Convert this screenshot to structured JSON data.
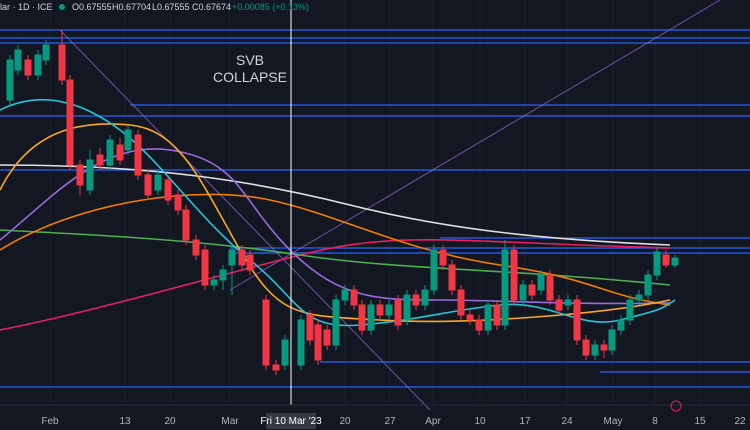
{
  "header": {
    "symbol": "lar · 1D · ICE",
    "open": "O0.67555",
    "high": "H0.67704",
    "low": "L0.67555",
    "close": "C0.67674",
    "change": "+0.00085 (+0.13%)"
  },
  "annotation": {
    "line1": "SVB",
    "line2": "COLLAPSE"
  },
  "x_axis": {
    "labels": [
      "Feb",
      "13",
      "20",
      "Mar",
      "20",
      "27",
      "Apr",
      "10",
      "17",
      "24",
      "May",
      "8",
      "15",
      "22"
    ],
    "crosshair": "Fri 10 Mar '23"
  }
}
